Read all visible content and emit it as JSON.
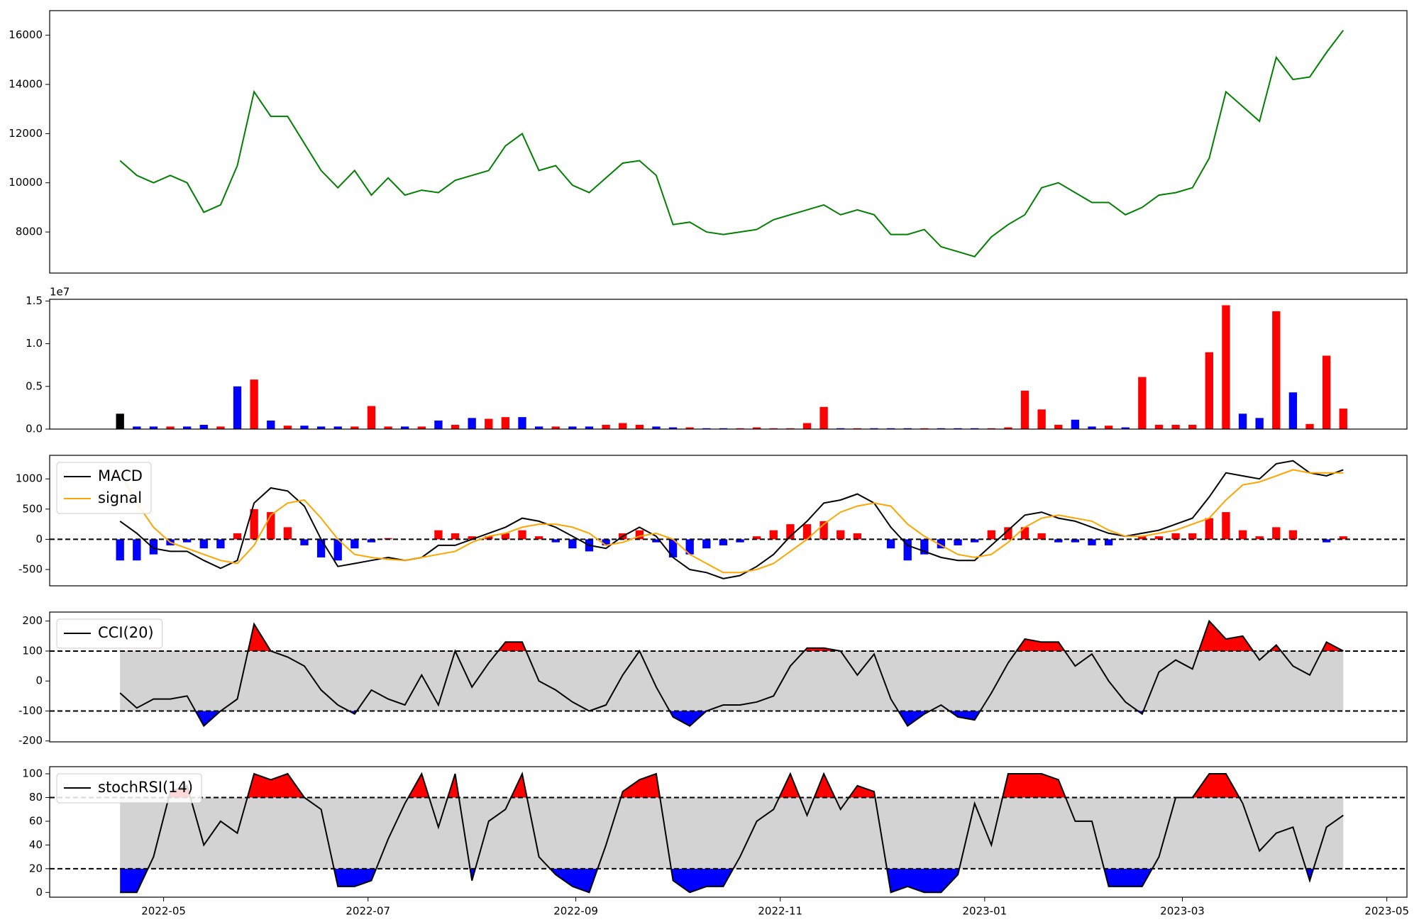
{
  "chart_data": [
    {
      "type": "line",
      "color": "green",
      "values": [
        10900,
        10300,
        10000,
        10300,
        10000,
        8800,
        9100,
        10700,
        13700,
        12700,
        12700,
        11600,
        10500,
        9800,
        10500,
        9500,
        10200,
        9500,
        9700,
        9600,
        10100,
        10300,
        10500,
        11500,
        12000,
        10500,
        10700,
        9900,
        9600,
        10200,
        10800,
        10900,
        10300,
        8300,
        8400,
        8000,
        7900,
        8000,
        8100,
        8500,
        8700,
        8900,
        9100,
        8700,
        8900,
        8700,
        7900,
        7900,
        8100,
        7400,
        7200,
        7000,
        7800,
        8300,
        8700,
        9800,
        10000,
        9600,
        9200,
        9200,
        8700,
        9000,
        9500,
        9600,
        9800,
        11000,
        13700,
        13100,
        12500,
        15100,
        14200,
        14300,
        15300,
        16200
      ],
      "ylim": [
        6330,
        17000
      ],
      "yticks": [
        8000,
        10000,
        12000,
        14000,
        16000
      ]
    },
    {
      "type": "bar",
      "offset_label": "1e7",
      "values": [
        0.18,
        0.03,
        0.03,
        0.03,
        0.03,
        0.05,
        0.03,
        0.5,
        0.58,
        0.1,
        0.04,
        0.04,
        0.03,
        0.03,
        0.03,
        0.27,
        0.03,
        0.03,
        0.03,
        0.1,
        0.05,
        0.13,
        0.12,
        0.14,
        0.14,
        0.03,
        0.03,
        0.03,
        0.03,
        0.05,
        0.07,
        0.05,
        0.03,
        0.02,
        0.02,
        0.01,
        0.01,
        0.01,
        0.02,
        0.01,
        0.01,
        0.07,
        0.26,
        0.01,
        0.01,
        0.01,
        0.01,
        0.01,
        0.01,
        0.01,
        0.01,
        0.01,
        0.01,
        0.02,
        0.45,
        0.23,
        0.05,
        0.11,
        0.03,
        0.04,
        0.02,
        0.61,
        0.05,
        0.05,
        0.05,
        0.9,
        1.45,
        0.18,
        0.13,
        1.38,
        0.43,
        0.06,
        0.86,
        0.24
      ],
      "colors": [
        "black",
        "blue",
        "blue",
        "red",
        "blue",
        "blue",
        "red",
        "blue",
        "red",
        "blue",
        "red",
        "blue",
        "blue",
        "blue",
        "red",
        "red",
        "red",
        "blue",
        "red",
        "blue",
        "red",
        "blue",
        "red",
        "red",
        "blue",
        "blue",
        "red",
        "blue",
        "blue",
        "red",
        "red",
        "red",
        "blue",
        "blue",
        "red",
        "blue",
        "blue",
        "red",
        "red",
        "red",
        "red",
        "red",
        "red",
        "blue",
        "red",
        "blue",
        "blue",
        "blue",
        "red",
        "blue",
        "blue",
        "blue",
        "red",
        "red",
        "red",
        "red",
        "red",
        "blue",
        "blue",
        "red",
        "blue",
        "red",
        "red",
        "red",
        "red",
        "red",
        "red",
        "blue",
        "blue",
        "red",
        "blue",
        "red",
        "red",
        "red"
      ],
      "ylim": [
        0,
        1.52
      ],
      "yticks": [
        {
          "value": 0,
          "label": "0.0"
        },
        {
          "value": 0.5,
          "label": "0.5"
        },
        {
          "value": 1,
          "label": "1.0"
        },
        {
          "value": 1.5,
          "label": "1.5"
        }
      ]
    },
    {
      "type": "macd",
      "reference_line": 0,
      "positive_color": "red",
      "negative_color": "blue",
      "series": [
        {
          "name": "MACD",
          "color": "black",
          "values": [
            300,
            100,
            -150,
            -200,
            -200,
            -350,
            -480,
            -350,
            600,
            850,
            800,
            550,
            0,
            -450,
            -400,
            -350,
            -300,
            -350,
            -300,
            -100,
            -100,
            0,
            100,
            200,
            350,
            300,
            200,
            50,
            -100,
            -150,
            50,
            200,
            50,
            -300,
            -500,
            -550,
            -650,
            -600,
            -450,
            -250,
            50,
            300,
            600,
            650,
            750,
            600,
            200,
            -100,
            -200,
            -300,
            -350,
            -350,
            -100,
            150,
            400,
            450,
            350,
            300,
            200,
            100,
            50,
            100,
            150,
            250,
            350,
            700,
            1100,
            1050,
            1000,
            1250,
            1300,
            1100,
            1050,
            1150
          ]
        },
        {
          "name": "signal",
          "color": "orange",
          "values": [
            1100,
            600,
            200,
            -50,
            -150,
            -250,
            -350,
            -400,
            -100,
            400,
            600,
            650,
            350,
            0,
            -250,
            -300,
            -330,
            -350,
            -300,
            -250,
            -200,
            -50,
            50,
            100,
            200,
            250,
            250,
            200,
            100,
            -100,
            -50,
            50,
            100,
            0,
            -250,
            -400,
            -550,
            -550,
            -500,
            -400,
            -200,
            0,
            250,
            450,
            550,
            600,
            550,
            250,
            50,
            -100,
            -250,
            -300,
            -250,
            -50,
            200,
            350,
            400,
            350,
            300,
            150,
            50,
            50,
            100,
            150,
            250,
            350,
            650,
            900,
            950,
            1050,
            1150,
            1100,
            1100,
            1100
          ]
        }
      ],
      "histogram": [
        -350,
        -350,
        -250,
        -100,
        -50,
        -150,
        -150,
        100,
        500,
        450,
        200,
        -100,
        -300,
        -350,
        -150,
        -50,
        20,
        0,
        0,
        150,
        100,
        50,
        50,
        100,
        150,
        50,
        -50,
        -150,
        -200,
        -100,
        100,
        150,
        -50,
        -300,
        -250,
        -150,
        -100,
        -50,
        50,
        150,
        250,
        250,
        300,
        150,
        100,
        0,
        -150,
        -350,
        -250,
        -150,
        -100,
        -50,
        150,
        200,
        200,
        100,
        -50,
        -50,
        -100,
        -100,
        0,
        50,
        50,
        100,
        100,
        350,
        450,
        150,
        50,
        200,
        150,
        0,
        -50,
        50
      ],
      "ylim": [
        -770,
        1390
      ],
      "yticks": [
        -500,
        0,
        500,
        1000
      ]
    },
    {
      "type": "oscillator",
      "thresholds": [
        -100,
        100
      ],
      "band_color": "lightgray",
      "upper_color": "red",
      "lower_color": "blue",
      "series": [
        {
          "name": "CCI(20)",
          "color": "black",
          "values": [
            -40,
            -90,
            -60,
            -60,
            -50,
            -150,
            -100,
            -60,
            190,
            100,
            80,
            50,
            -30,
            -80,
            -110,
            -30,
            -60,
            -80,
            20,
            -80,
            100,
            -20,
            60,
            130,
            130,
            0,
            -30,
            -70,
            -100,
            -80,
            20,
            100,
            -20,
            -120,
            -150,
            -100,
            -80,
            -80,
            -70,
            -50,
            50,
            110,
            110,
            100,
            20,
            90,
            -60,
            -150,
            -110,
            -80,
            -120,
            -130,
            -40,
            60,
            140,
            130,
            130,
            50,
            90,
            0,
            -70,
            -110,
            30,
            70,
            40,
            200,
            140,
            150,
            70,
            120,
            50,
            20,
            130,
            100
          ]
        }
      ],
      "ylim": [
        -203,
        230
      ],
      "yticks": [
        -200,
        -100,
        0,
        100,
        200
      ]
    },
    {
      "type": "oscillator",
      "thresholds": [
        20,
        80
      ],
      "band_color": "lightgray",
      "upper_color": "red",
      "lower_color": "blue",
      "series": [
        {
          "name": "stochRSI(14)",
          "color": "black",
          "values": [
            0,
            0,
            30,
            85,
            90,
            40,
            60,
            50,
            100,
            95,
            100,
            80,
            70,
            5,
            5,
            10,
            45,
            75,
            100,
            55,
            100,
            10,
            60,
            70,
            100,
            30,
            15,
            5,
            0,
            40,
            85,
            95,
            100,
            10,
            0,
            5,
            5,
            30,
            60,
            70,
            100,
            65,
            100,
            70,
            90,
            85,
            0,
            5,
            0,
            0,
            15,
            75,
            40,
            100,
            100,
            100,
            95,
            60,
            60,
            5,
            5,
            5,
            30,
            80,
            80,
            100,
            100,
            75,
            35,
            50,
            55,
            10,
            55,
            65
          ]
        }
      ],
      "ylim": [
        -4,
        106
      ],
      "yticks": [
        0,
        20,
        40,
        60,
        80,
        100
      ],
      "x": [
        0,
        5,
        10,
        15,
        20,
        25,
        30,
        35,
        40,
        45,
        50,
        55,
        60,
        65,
        70,
        75,
        80,
        85,
        90,
        95,
        100,
        105,
        110,
        115,
        120,
        125,
        130,
        135,
        140,
        145,
        150,
        155,
        160,
        165,
        170,
        175,
        180,
        185,
        190,
        195,
        200,
        205,
        210,
        215,
        220,
        225,
        230,
        235,
        240,
        245,
        250,
        255,
        260,
        265,
        270,
        275,
        280,
        285,
        290,
        295,
        300,
        305,
        310,
        315,
        320,
        325,
        330,
        335,
        340,
        345,
        350,
        355,
        360,
        365
      ],
      "xlim": [
        -21,
        384
      ],
      "xticks": [
        {
          "value": 13,
          "label": "2022-05"
        },
        {
          "value": 74,
          "label": "2022-07"
        },
        {
          "value": 136,
          "label": "2022-09"
        },
        {
          "value": 197,
          "label": "2022-11"
        },
        {
          "value": 258,
          "label": "2023-01"
        },
        {
          "value": 317,
          "label": "2023-03"
        },
        {
          "value": 378,
          "label": "2023-05"
        }
      ]
    }
  ]
}
